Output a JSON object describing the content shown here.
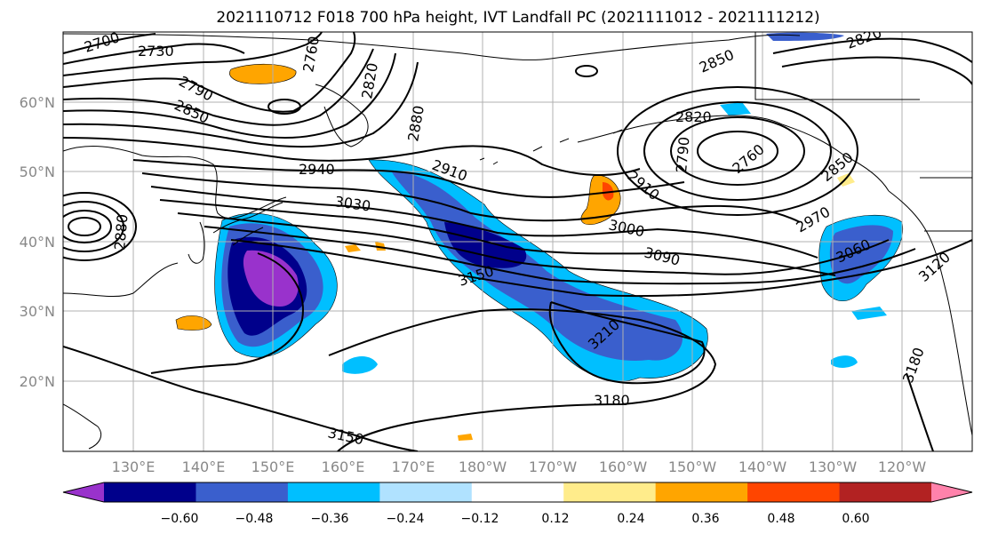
{
  "title": "2021110712 F018 700 hPa height, IVT Landfall PC (2021111012 - 2021111212)",
  "map": {
    "lon_ticks": [
      "130°E",
      "140°E",
      "150°E",
      "160°E",
      "170°E",
      "180°W",
      "170°W",
      "160°W",
      "150°W",
      "140°W",
      "130°W",
      "120°W"
    ],
    "lat_ticks": [
      "20°N",
      "30°N",
      "40°N",
      "50°N",
      "60°N"
    ],
    "lon_range": [
      120,
      250
    ],
    "lat_range": [
      10,
      70
    ]
  },
  "contour_labels": [
    {
      "id": "c2700",
      "text": "2700"
    },
    {
      "id": "c2730",
      "text": "2730"
    },
    {
      "id": "c2760a",
      "text": "2760"
    },
    {
      "id": "c2820a",
      "text": "2820"
    },
    {
      "id": "c2790a",
      "text": "2790"
    },
    {
      "id": "c2850a",
      "text": "2850"
    },
    {
      "id": "c2880",
      "text": "2880"
    },
    {
      "id": "c2940",
      "text": "2940"
    },
    {
      "id": "c2910a",
      "text": "2910"
    },
    {
      "id": "c3030",
      "text": "3030"
    },
    {
      "id": "c2880b",
      "text": "2880"
    },
    {
      "id": "c3150a",
      "text": "3150"
    },
    {
      "id": "c3000",
      "text": "3000"
    },
    {
      "id": "c3090",
      "text": "3090"
    },
    {
      "id": "c3210",
      "text": "3210"
    },
    {
      "id": "c3180a",
      "text": "3180"
    },
    {
      "id": "c3150b",
      "text": "3150"
    },
    {
      "id": "c2850b",
      "text": "2850"
    },
    {
      "id": "c2820b",
      "text": "2820"
    },
    {
      "id": "c2820c",
      "text": "2820"
    },
    {
      "id": "c2790b",
      "text": "2790"
    },
    {
      "id": "c2760b",
      "text": "2760"
    },
    {
      "id": "c2910b",
      "text": "2910"
    },
    {
      "id": "c2850c",
      "text": "2850"
    },
    {
      "id": "c2970",
      "text": "2970"
    },
    {
      "id": "c3060",
      "text": "3060"
    },
    {
      "id": "c3120",
      "text": "3120"
    },
    {
      "id": "c3180b",
      "text": "3180"
    }
  ],
  "colorbar": {
    "levels": [
      "−0.60",
      "−0.48",
      "−0.36",
      "−0.24",
      "−0.12",
      "0.12",
      "0.24",
      "0.36",
      "0.48",
      "0.60"
    ],
    "colors": [
      "#9932CC",
      "#00008B",
      "#3A5FCD",
      "#00BFFF",
      "#B0E2FF",
      "#FFFFFF",
      "#FFEC8B",
      "#FFA500",
      "#FF4500",
      "#B22222",
      "#FF82AB"
    ]
  }
}
